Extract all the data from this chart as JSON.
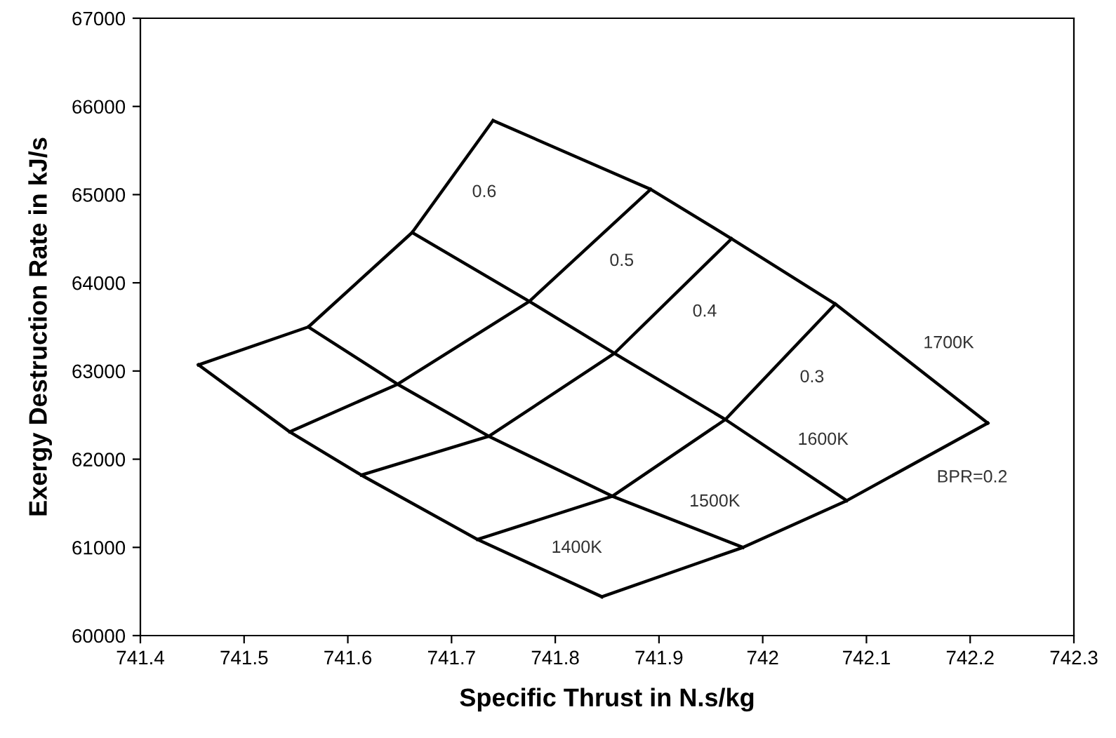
{
  "chart_data": {
    "type": "line",
    "xlabel": "Specific Thrust in N.s/kg",
    "ylabel": "Exergy Destruction Rate in kJ/s",
    "xlim": [
      741.4,
      742.3
    ],
    "xticks": [
      741.4,
      741.5,
      741.6,
      741.7,
      741.8,
      741.9,
      742,
      742.1,
      742.2,
      742.3
    ],
    "ylim": [
      60000,
      67000
    ],
    "yticks": [
      60000,
      61000,
      62000,
      63000,
      64000,
      65000,
      66000,
      67000
    ],
    "grid": false,
    "legend": false,
    "marker": "none",
    "line_style": "solid",
    "series": [
      {
        "name": "0.6",
        "color": "#000000",
        "x": [
          741.456,
          741.562,
          741.662,
          741.74
        ],
        "values": [
          63070,
          63500,
          64570,
          65840
        ]
      },
      {
        "name": "0.5",
        "color": "#000000",
        "x": [
          741.544,
          741.648,
          741.775,
          741.892
        ],
        "values": [
          62310,
          62850,
          63790,
          65060
        ]
      },
      {
        "name": "0.4",
        "color": "#000000",
        "x": [
          741.613,
          741.736,
          741.857,
          741.97
        ],
        "values": [
          61820,
          62260,
          63200,
          64500
        ]
      },
      {
        "name": "0.3",
        "color": "#000000",
        "x": [
          741.725,
          741.855,
          741.964,
          742.07
        ],
        "values": [
          61090,
          61580,
          62450,
          63760
        ]
      },
      {
        "name": "BPR=0.2",
        "color": "#000000",
        "x": [
          741.845,
          741.981,
          742.081,
          742.217
        ],
        "values": [
          60440,
          61000,
          61530,
          62410
        ]
      },
      {
        "name": "1400K",
        "color": "#000000",
        "x": [
          741.456,
          741.544,
          741.613,
          741.725,
          741.845
        ],
        "values": [
          63070,
          62310,
          61820,
          61090,
          60440
        ]
      },
      {
        "name": "1500K",
        "color": "#000000",
        "x": [
          741.562,
          741.648,
          741.736,
          741.855,
          741.981
        ],
        "values": [
          63500,
          62850,
          62260,
          61580,
          61000
        ]
      },
      {
        "name": "1600K",
        "color": "#000000",
        "x": [
          741.662,
          741.775,
          741.857,
          741.964,
          742.081
        ],
        "values": [
          64570,
          63790,
          63200,
          62450,
          61530
        ]
      },
      {
        "name": "1700K",
        "color": "#000000",
        "x": [
          741.74,
          741.892,
          741.97,
          742.07,
          742.217
        ],
        "values": [
          65840,
          65060,
          64500,
          63760,
          62410
        ]
      }
    ]
  }
}
